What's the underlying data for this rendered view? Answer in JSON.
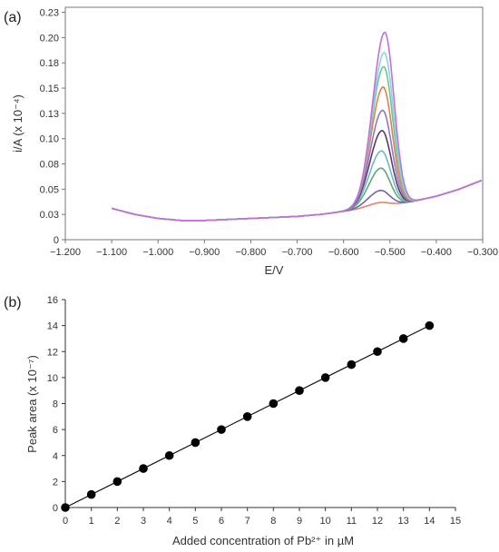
{
  "chart_data": [
    {
      "panel_label": "(a)",
      "type": "line",
      "xlabel": "E/V",
      "ylabel": "i/A (x 10⁻⁴)",
      "xlim": [
        -1.2,
        -0.3
      ],
      "ylim": [
        0,
        0.23
      ],
      "x_ticks": [
        "−1.200",
        "−1.100",
        "−1.000",
        "−0.900",
        "−0.800",
        "−0.700",
        "−0.600",
        "−0.500",
        "−0.400",
        "−0.300"
      ],
      "x_tick_values": [
        -1.2,
        -1.1,
        -1.0,
        -0.9,
        -0.8,
        -0.7,
        -0.6,
        -0.5,
        -0.4,
        -0.3
      ],
      "y_ticks": [
        "0",
        "0.03",
        "0.05",
        "0.08",
        "0.10",
        "0.13",
        "0.15",
        "0.18",
        "0.20",
        "0.23"
      ],
      "y_tick_values": [
        0,
        0.025,
        0.05,
        0.075,
        0.1,
        0.125,
        0.15,
        0.175,
        0.2,
        0.225
      ],
      "grid": false,
      "baseline": {
        "x": [
          -1.1,
          -1.05,
          -1.0,
          -0.95,
          -0.9,
          -0.85,
          -0.8,
          -0.75,
          -0.7,
          -0.65,
          -0.6,
          -0.55,
          -0.5,
          -0.45,
          -0.4,
          -0.35,
          -0.3
        ],
        "y": [
          0.031,
          0.025,
          0.021,
          0.019,
          0.019,
          0.02,
          0.021,
          0.022,
          0.023,
          0.025,
          0.028,
          0.031,
          0.034,
          0.038,
          0.043,
          0.05,
          0.059
        ]
      },
      "peak_potential": -0.522,
      "series": [
        {
          "color": "#e0806a",
          "peak_height": 0.004
        },
        {
          "color": "#6e64b0",
          "peak_height": 0.016
        },
        {
          "color": "#62a872",
          "peak_height": 0.038
        },
        {
          "color": "#6fb7c2",
          "peak_height": 0.055
        },
        {
          "color": "#5a3870",
          "peak_height": 0.075
        },
        {
          "color": "#8f76c8",
          "peak_height": 0.095
        },
        {
          "color": "#e0804a",
          "peak_height": 0.118
        },
        {
          "color": "#6cc88e",
          "peak_height": 0.138
        },
        {
          "color": "#8cd4e8",
          "peak_height": 0.152
        },
        {
          "color": "#c56ed8",
          "peak_height": 0.172
        }
      ]
    },
    {
      "panel_label": "(b)",
      "type": "scatter",
      "xlabel": "Added concentration of Pb²⁺ in µM",
      "ylabel": "Peak area (x 10⁻⁷)",
      "xlim": [
        0,
        15
      ],
      "ylim": [
        0,
        16
      ],
      "x_ticks": [
        "0",
        "1",
        "2",
        "3",
        "4",
        "5",
        "6",
        "7",
        "8",
        "9",
        "10",
        "11",
        "12",
        "13",
        "14",
        "15"
      ],
      "y_ticks": [
        "0",
        "2",
        "4",
        "6",
        "8",
        "10",
        "12",
        "14",
        "16"
      ],
      "grid": false,
      "trendline": true,
      "x": [
        0,
        1,
        2,
        3,
        4,
        5,
        6,
        7,
        8,
        9,
        10,
        11,
        12,
        13,
        14
      ],
      "y": [
        0,
        1,
        2,
        3,
        4,
        5,
        6,
        7,
        8,
        9,
        10,
        11,
        12,
        13,
        14
      ]
    }
  ]
}
